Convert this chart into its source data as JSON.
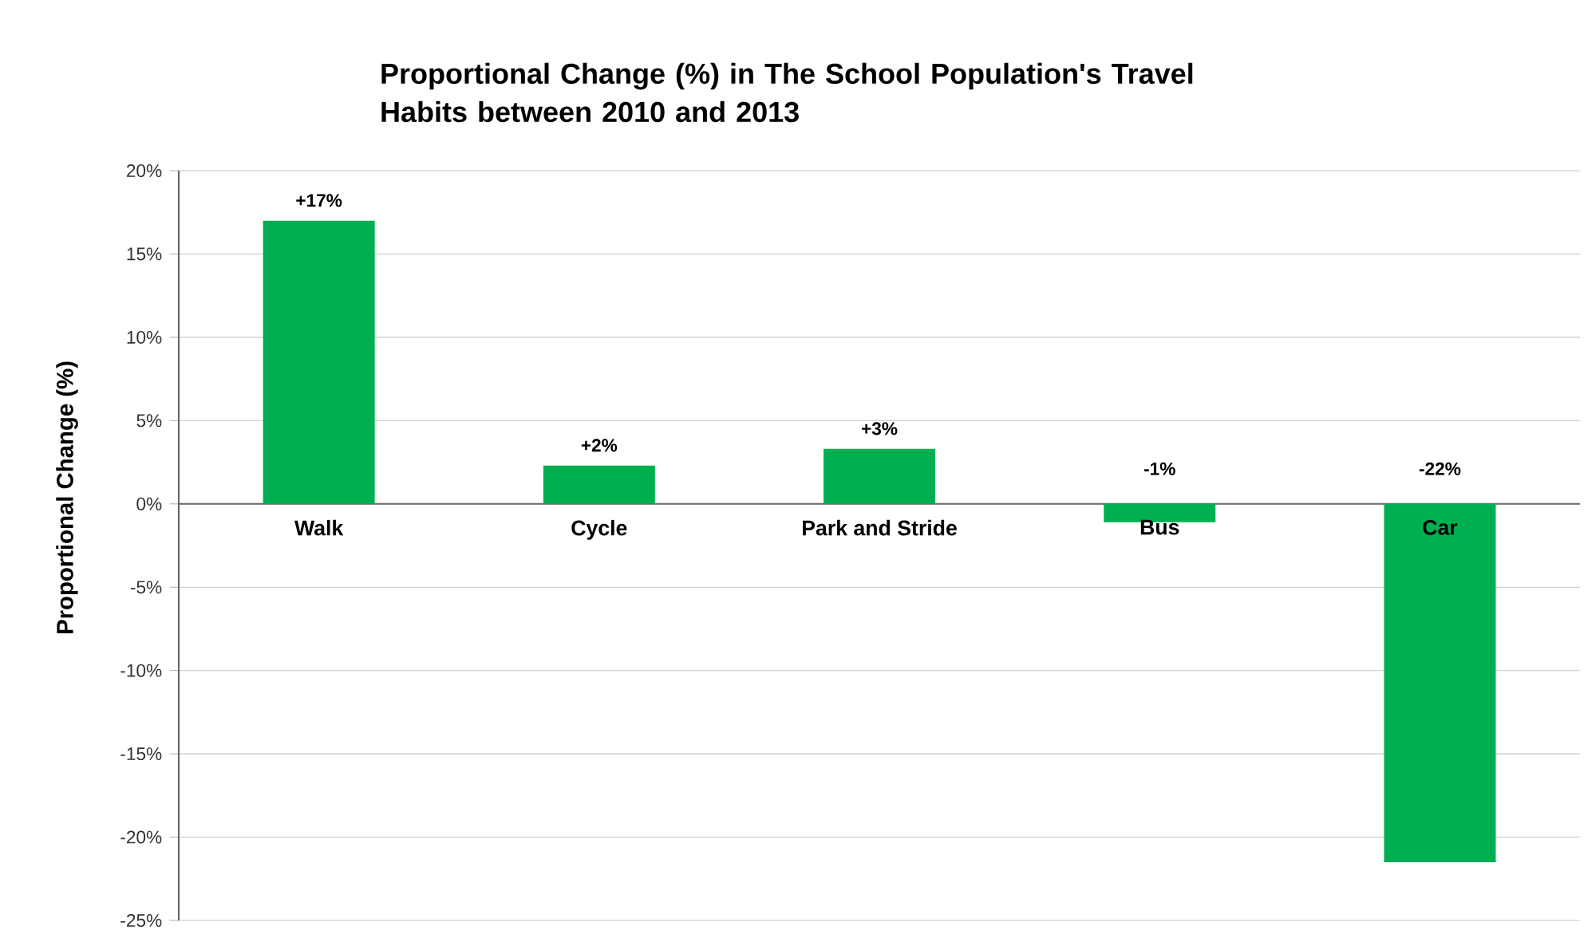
{
  "chart_data": {
    "type": "bar",
    "title": "Proportional Change (%) in The School Population's Travel Habits between 2010 and 2013",
    "ylabel": "Proportional Change (%)",
    "categories": [
      "Walk",
      "Cycle",
      "Park and Stride",
      "Bus",
      "Car"
    ],
    "values": [
      17,
      2.3,
      3.3,
      -1.1,
      -21.5
    ],
    "value_labels": [
      "+17%",
      "+2%",
      "+3%",
      "-1%",
      "-22%"
    ],
    "color": "#00b050",
    "ylim": [
      -25,
      20
    ],
    "yticks": [
      {
        "value": -25,
        "label": "-25%"
      },
      {
        "value": -20,
        "label": "-20%"
      },
      {
        "value": -15,
        "label": "-15%"
      },
      {
        "value": -10,
        "label": "-10%"
      },
      {
        "value": -5,
        "label": "-5%"
      },
      {
        "value": 0,
        "label": "0%"
      },
      {
        "value": 5,
        "label": "5%"
      },
      {
        "value": 10,
        "label": "10%"
      },
      {
        "value": 15,
        "label": "15%"
      },
      {
        "value": 20,
        "label": "20%"
      }
    ],
    "grid": "y"
  }
}
